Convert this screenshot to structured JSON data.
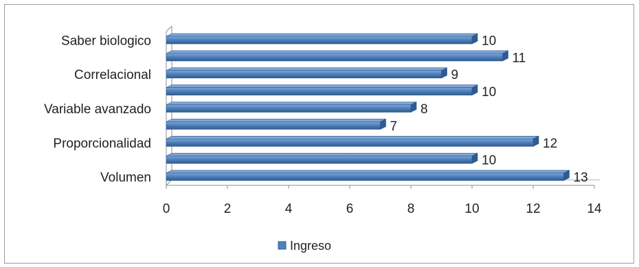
{
  "chart_data": {
    "type": "bar",
    "orientation": "horizontal",
    "categories": [
      "Saber biologico",
      "",
      "Correlacional",
      "",
      "Variable avanzado",
      "",
      "Proporcionalidad",
      "",
      "Volumen"
    ],
    "series": [
      {
        "name": "Ingreso",
        "values": [
          10,
          11,
          9,
          10,
          8,
          7,
          12,
          10,
          13
        ]
      }
    ],
    "data_labels": [
      "10",
      "11",
      "9",
      "10",
      "8",
      "7",
      "12",
      "10",
      "13"
    ],
    "xlim": [
      0,
      14
    ],
    "x_ticks": [
      "0",
      "2",
      "4",
      "6",
      "8",
      "10",
      "12",
      "14"
    ],
    "grid": false,
    "legend": "bottom",
    "colors": {
      "bar": "#4f81bd",
      "bar_dark": "#2f5b8f",
      "bar_light": "#7fa6d6"
    }
  }
}
